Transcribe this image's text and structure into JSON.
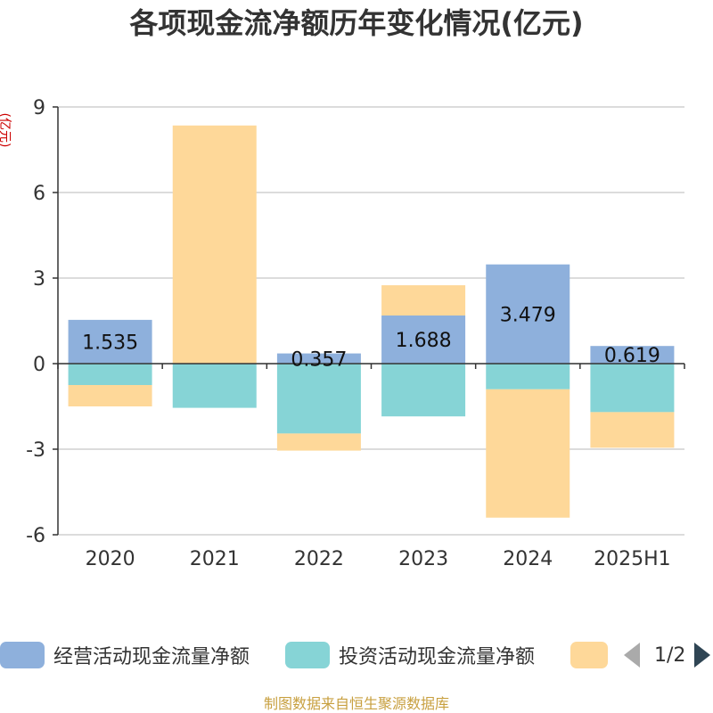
{
  "title": "各项现金流净额历年变化情况(亿元)",
  "y_unit": "(亿元)",
  "source": "制图数据来自恒生聚源数据库",
  "legend": {
    "items": [
      {
        "label": "经营活动现金流量净额",
        "color": "#8eb0dc"
      },
      {
        "label": "投资活动现金流量净额",
        "color": "#86d4d6"
      },
      {
        "label": "",
        "color": "#fed899"
      }
    ],
    "page": "1/2"
  },
  "chart_data": {
    "type": "bar",
    "stacked": true,
    "categories": [
      "2020",
      "2021",
      "2022",
      "2023",
      "2024",
      "2025H1"
    ],
    "series": [
      {
        "name": "经营活动现金流量净额",
        "color": "#8eb0dc",
        "values": [
          1.535,
          -0.0,
          0.357,
          1.688,
          3.479,
          0.619
        ],
        "labels": [
          "1.535",
          "",
          "0.357",
          "1.688",
          "3.479",
          "0.619"
        ]
      },
      {
        "name": "投资活动现金流量净额",
        "color": "#86d4d6",
        "values": [
          -0.75,
          -1.55,
          -2.45,
          -1.85,
          -0.9,
          -1.7
        ]
      },
      {
        "name": "",
        "color": "#fed899",
        "values": [
          -0.75,
          8.35,
          -0.6,
          1.06,
          -4.5,
          -1.25
        ]
      }
    ],
    "ylim": [
      -6,
      9
    ],
    "yticks": [
      -6,
      -3,
      0,
      3,
      6,
      9
    ],
    "grid": true
  }
}
